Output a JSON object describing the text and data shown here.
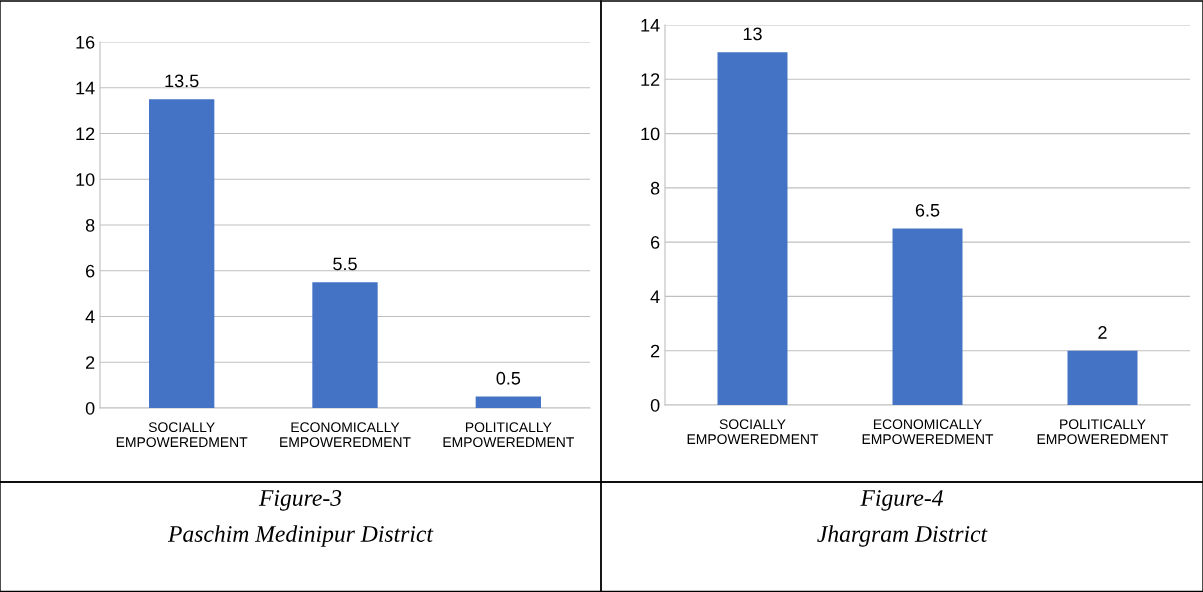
{
  "chart_data": [
    {
      "type": "bar",
      "categories": [
        "SOCIALLY\nEMPOWEREDMENT",
        "ECONOMICALLY\nEMPOWEREDMENT",
        "POLITICALLY\nEMPOWEREDMENT"
      ],
      "values": [
        13.5,
        5.5,
        0.5
      ],
      "color": "#4472c4",
      "ylim": [
        0,
        16
      ],
      "yticks": [
        0,
        2,
        4,
        6,
        8,
        10,
        12,
        14,
        16
      ],
      "grid": "y",
      "data_labels": true,
      "annotations": [
        "Figure-3",
        "Paschim Medinipur District"
      ]
    },
    {
      "type": "bar",
      "categories": [
        "SOCIALLY\nEMPOWEREDMENT",
        "ECONOMICALLY\nEMPOWEREDMENT",
        "POLITICALLY\nEMPOWEREDMENT"
      ],
      "values": [
        13,
        6.5,
        2
      ],
      "color": "#4472c4",
      "ylim": [
        0,
        14
      ],
      "yticks": [
        0,
        2,
        4,
        6,
        8,
        10,
        12,
        14
      ],
      "grid": "y",
      "data_labels": true,
      "annotations": [
        "Figure-4",
        "Jhargram District"
      ]
    }
  ]
}
